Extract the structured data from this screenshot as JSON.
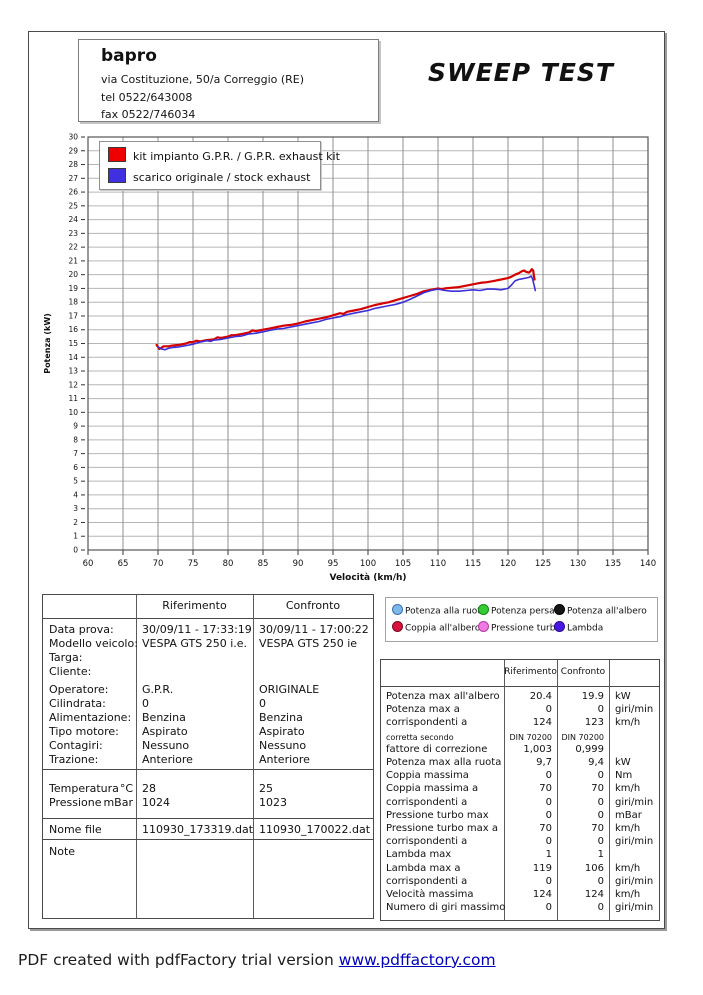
{
  "header": {
    "company": "bapro",
    "address": "via Costituzione, 50/a Correggio (RE)",
    "tel": "tel 0522/643008",
    "fax": "fax 0522/746034",
    "title": "SWEEP TEST"
  },
  "chart": {
    "legend": [
      {
        "label": "kit impianto G.P.R. / G.P.R. exhaust kit",
        "color": "#ee0000"
      },
      {
        "label": "scarico originale / stock exhaust",
        "color": "#4030e0"
      }
    ]
  },
  "chart_data": {
    "type": "line",
    "xlabel": "Velocità (km/h)",
    "ylabel": "Potenza (kW)",
    "xlim": [
      60,
      140
    ],
    "xstep": 5,
    "ylim": [
      0,
      30
    ],
    "ystep": 1,
    "grid": true,
    "legend_position": "top-left",
    "series": [
      {
        "name": "kit impianto G.P.R. / G.P.R. exhaust kit",
        "color": "#d40000",
        "width": 2.2,
        "points": [
          [
            69.8,
            14.9
          ],
          [
            70.2,
            14.6
          ],
          [
            70.8,
            14.8
          ],
          [
            71.5,
            14.8
          ],
          [
            72,
            14.85
          ],
          [
            73,
            14.9
          ],
          [
            74,
            15.0
          ],
          [
            74.5,
            15.1
          ],
          [
            75,
            15.1
          ],
          [
            75.5,
            15.2
          ],
          [
            76,
            15.15
          ],
          [
            77,
            15.25
          ],
          [
            78,
            15.3
          ],
          [
            78.5,
            15.45
          ],
          [
            79,
            15.4
          ],
          [
            80,
            15.5
          ],
          [
            80.5,
            15.6
          ],
          [
            81,
            15.6
          ],
          [
            82,
            15.7
          ],
          [
            83,
            15.8
          ],
          [
            83.5,
            15.95
          ],
          [
            84,
            15.9
          ],
          [
            85,
            16.0
          ],
          [
            86,
            16.1
          ],
          [
            87,
            16.2
          ],
          [
            88,
            16.3
          ],
          [
            89,
            16.35
          ],
          [
            90,
            16.45
          ],
          [
            91,
            16.6
          ],
          [
            92,
            16.7
          ],
          [
            93,
            16.8
          ],
          [
            94,
            16.9
          ],
          [
            95,
            17.05
          ],
          [
            96,
            17.2
          ],
          [
            96.5,
            17.15
          ],
          [
            97,
            17.3
          ],
          [
            98,
            17.4
          ],
          [
            99,
            17.5
          ],
          [
            100,
            17.65
          ],
          [
            101,
            17.8
          ],
          [
            102,
            17.9
          ],
          [
            103,
            18.0
          ],
          [
            104,
            18.15
          ],
          [
            105,
            18.3
          ],
          [
            106,
            18.45
          ],
          [
            107,
            18.6
          ],
          [
            108,
            18.8
          ],
          [
            109,
            18.9
          ],
          [
            110,
            19.0
          ],
          [
            110.5,
            18.95
          ],
          [
            111,
            19.0
          ],
          [
            112,
            19.05
          ],
          [
            113,
            19.1
          ],
          [
            114,
            19.2
          ],
          [
            115,
            19.3
          ],
          [
            116,
            19.4
          ],
          [
            117,
            19.45
          ],
          [
            118,
            19.55
          ],
          [
            119,
            19.65
          ],
          [
            120,
            19.75
          ],
          [
            120.5,
            19.85
          ],
          [
            121,
            20.0
          ],
          [
            121.5,
            20.1
          ],
          [
            122,
            20.25
          ],
          [
            122.3,
            20.3
          ],
          [
            122.6,
            20.2
          ],
          [
            123,
            20.15
          ],
          [
            123.2,
            20.25
          ],
          [
            123.4,
            20.4
          ],
          [
            123.6,
            20.3
          ],
          [
            123.7,
            19.9
          ],
          [
            123.8,
            19.65
          ]
        ]
      },
      {
        "name": "scarico originale / stock exhaust",
        "color": "#3a2fd8",
        "width": 1.6,
        "points": [
          [
            70,
            14.75
          ],
          [
            70.5,
            14.6
          ],
          [
            71,
            14.55
          ],
          [
            71.5,
            14.65
          ],
          [
            72,
            14.7
          ],
          [
            73,
            14.75
          ],
          [
            74,
            14.85
          ],
          [
            75,
            14.95
          ],
          [
            76,
            15.1
          ],
          [
            77,
            15.2
          ],
          [
            77.5,
            15.15
          ],
          [
            78,
            15.25
          ],
          [
            79,
            15.3
          ],
          [
            80,
            15.4
          ],
          [
            81,
            15.5
          ],
          [
            82,
            15.55
          ],
          [
            83,
            15.7
          ],
          [
            84,
            15.75
          ],
          [
            85,
            15.85
          ],
          [
            86,
            15.95
          ],
          [
            87,
            16.05
          ],
          [
            88,
            16.1
          ],
          [
            89,
            16.2
          ],
          [
            90,
            16.3
          ],
          [
            91,
            16.4
          ],
          [
            92,
            16.5
          ],
          [
            93,
            16.6
          ],
          [
            94,
            16.75
          ],
          [
            95,
            16.85
          ],
          [
            96,
            16.95
          ],
          [
            97,
            17.1
          ],
          [
            98,
            17.2
          ],
          [
            99,
            17.3
          ],
          [
            100,
            17.4
          ],
          [
            101,
            17.55
          ],
          [
            102,
            17.65
          ],
          [
            103,
            17.75
          ],
          [
            104,
            17.85
          ],
          [
            105,
            18.0
          ],
          [
            106,
            18.2
          ],
          [
            107,
            18.45
          ],
          [
            108,
            18.7
          ],
          [
            109,
            18.85
          ],
          [
            110,
            18.95
          ],
          [
            111,
            18.85
          ],
          [
            112,
            18.8
          ],
          [
            113,
            18.8
          ],
          [
            114,
            18.85
          ],
          [
            115,
            18.9
          ],
          [
            116,
            18.85
          ],
          [
            117,
            18.95
          ],
          [
            118,
            18.95
          ],
          [
            119,
            18.9
          ],
          [
            120,
            19.0
          ],
          [
            120.5,
            19.25
          ],
          [
            121,
            19.55
          ],
          [
            121.5,
            19.65
          ],
          [
            122,
            19.7
          ],
          [
            122.5,
            19.75
          ],
          [
            123,
            19.8
          ],
          [
            123.3,
            19.9
          ],
          [
            123.5,
            19.7
          ],
          [
            123.7,
            19.3
          ],
          [
            123.9,
            18.85
          ]
        ]
      }
    ]
  },
  "info_table": {
    "headers": [
      "Riferimento",
      "Confronto"
    ],
    "groups": [
      [
        {
          "label": "Data prova:",
          "rif": "30/09/11 - 17:33:19",
          "conf": "30/09/11 - 17:00:22"
        },
        {
          "label": "Modello veicolo:",
          "rif": "VESPA  GTS 250 i.e.",
          "conf": "VESPA GTS 250 ie"
        },
        {
          "label": "Targa:",
          "rif": "",
          "conf": ""
        },
        {
          "label": "Cliente:",
          "rif": "",
          "conf": ""
        }
      ],
      [
        {
          "label": "Operatore:",
          "rif": "G.P.R.",
          "conf": "ORIGINALE"
        },
        {
          "label": "Cilindrata:",
          "rif": "0",
          "conf": "0"
        },
        {
          "label": "Alimentazione:",
          "rif": "Benzina",
          "conf": "Benzina"
        },
        {
          "label": "Tipo motore:",
          "rif": "Aspirato",
          "conf": "Aspirato"
        },
        {
          "label": "Contagiri:",
          "rif": "Nessuno",
          "conf": "Nessuno"
        },
        {
          "label": "Trazione:",
          "rif": "Anteriore",
          "conf": "Anteriore"
        }
      ],
      [
        {
          "label": "Temperatura",
          "unit": "°C",
          "rif": "28",
          "conf": "25"
        },
        {
          "label": "Pressione",
          "unit": "mBar",
          "rif": "1024",
          "conf": "1023"
        }
      ],
      [
        {
          "label": "Nome file",
          "rif": "110930_173319.dat",
          "conf": "110930_170022.dat"
        }
      ],
      [
        {
          "label": "Note",
          "rif": "",
          "conf": ""
        }
      ]
    ]
  },
  "results_legend": [
    {
      "label": "Potenza alla ruota",
      "color": "#7db8ea",
      "border": "#3a70b0"
    },
    {
      "label": "Potenza persa",
      "color": "#33cc33",
      "border": "#148514"
    },
    {
      "label": "Potenza all'albero",
      "color": "#161616",
      "border": "#000000"
    },
    {
      "label": "Coppia all'albero",
      "color": "#d8103c",
      "border": "#7c0a22"
    },
    {
      "label": "Pressione turbo",
      "color": "#ee7ae2",
      "border": "#b23aa6"
    },
    {
      "label": "Lambda",
      "color": "#4818e0",
      "border": "#2a0a90"
    }
  ],
  "results_table": {
    "headers": [
      "Riferimento",
      "Confronto"
    ],
    "rows": [
      {
        "label": "Potenza max all'albero",
        "rif": "20.4",
        "conf": "19.9",
        "unit": "kW"
      },
      {
        "label": "Potenza max a",
        "rif": "0",
        "conf": "0",
        "unit": "giri/min"
      },
      {
        "label": "corrispondenti a",
        "rif": "124",
        "conf": "123",
        "unit": "km/h"
      },
      {
        "label": "corretta secondo",
        "rif": "DIN 70200",
        "conf": "DIN 70200",
        "unit": "",
        "small": true
      },
      {
        "label": "fattore di correzione",
        "rif": "1,003",
        "conf": "0,999",
        "unit": ""
      },
      {
        "label": "Potenza max alla ruota",
        "rif": "9,7",
        "conf": "9,4",
        "unit": "kW"
      },
      {
        "label": "Coppia massima",
        "rif": "0",
        "conf": "0",
        "unit": "Nm"
      },
      {
        "label": "Coppia massima a",
        "rif": "70",
        "conf": "70",
        "unit": "km/h"
      },
      {
        "label": "corrispondenti a",
        "rif": "0",
        "conf": "0",
        "unit": "giri/min"
      },
      {
        "label": "Pressione turbo max",
        "rif": "0",
        "conf": "0",
        "unit": "mBar"
      },
      {
        "label": "Pressione turbo max a",
        "rif": "70",
        "conf": "70",
        "unit": "km/h"
      },
      {
        "label": "corrispondenti a",
        "rif": "0",
        "conf": "0",
        "unit": "giri/min"
      },
      {
        "label": "Lambda max",
        "rif": "1",
        "conf": "1",
        "unit": ""
      },
      {
        "label": "Lambda max a",
        "rif": "119",
        "conf": "106",
        "unit": "km/h"
      },
      {
        "label": "corrispondenti a",
        "rif": "0",
        "conf": "0",
        "unit": "giri/min"
      },
      {
        "label": "Velocità massima",
        "rif": "124",
        "conf": "124",
        "unit": "km/h"
      },
      {
        "label": "Numero di giri massimo",
        "rif": "0",
        "conf": "0",
        "unit": "giri/min"
      }
    ]
  },
  "footer": {
    "text": "PDF created with pdfFactory trial version ",
    "link": "www.pdffactory.com"
  }
}
